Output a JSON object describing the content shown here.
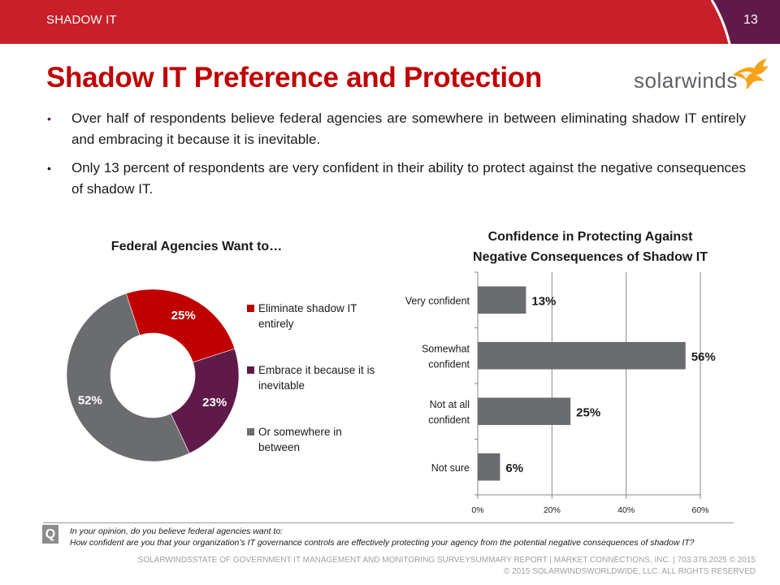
{
  "header": {
    "section_label": "SHADOW IT",
    "page_number": "13",
    "colors": {
      "band": "#c8202a",
      "corner": "#5f1a4a"
    }
  },
  "title": "Shadow IT Preference and Protection",
  "logo": {
    "text": "solarwinds",
    "icon": "solarwinds-flame-icon",
    "accent": "#f7a21b"
  },
  "bullets": [
    "Over half of respondents believe federal agencies are somewhere in between eliminating shadow IT entirely and embracing it because it is inevitable.",
    "Only 13 percent of respondents  are very confident in their ability to protect against the negative consequences of shadow IT."
  ],
  "bullet_glyph": "•",
  "chart_data": [
    {
      "type": "pie",
      "variant": "donut",
      "title": "Federal Agencies Want to…",
      "categories": [
        "Eliminate shadow IT entirely",
        "Embrace it because it is inevitable",
        "Or somewhere in between"
      ],
      "values": [
        25,
        23,
        52
      ],
      "data_labels": [
        "25%",
        "23%",
        "52%"
      ],
      "colors": [
        "#c00000",
        "#5f1a4a",
        "#6b6c70"
      ],
      "legend": "right",
      "start_angle_deg": -18
    },
    {
      "type": "bar",
      "orientation": "horizontal",
      "title": "Confidence in Protecting Against Negative Consequences of Shadow IT",
      "title_lines": [
        "Confidence in Protecting Against",
        "Negative Consequences of Shadow IT"
      ],
      "categories": [
        "Very confident",
        "Somewhat confident",
        "Not at all confident",
        "Not sure"
      ],
      "category_lines": [
        [
          "Very confident"
        ],
        [
          "Somewhat",
          "confident"
        ],
        [
          "Not at all",
          "confident"
        ],
        [
          "Not sure"
        ]
      ],
      "values": [
        13,
        56,
        25,
        6
      ],
      "data_labels": [
        "13%",
        "56%",
        "25%",
        "6%"
      ],
      "xlim": [
        0,
        60
      ],
      "xticks": [
        0,
        20,
        40,
        60
      ],
      "xtick_labels": [
        "0%",
        "20%",
        "40%",
        "60%"
      ],
      "grid": true,
      "color": "#6b6c70",
      "xlabel": "",
      "ylabel": ""
    }
  ],
  "question": {
    "icon_label": "Q",
    "lines": [
      "In your opinion, do you believe federal agencies want to:",
      "How confident are you that your organization’s IT governance  controls are effectively protecting your agency from the potential negative consequences of shadow IT?"
    ]
  },
  "footer": {
    "line1": "SOLARWINDSSTATE OF GOVERNMENT IT MANAGEMENT AND MONITORING SURVEYSUMMARY REPORT |   MARKET CONNECTIONS, INC.  |  703.378.2025 © 2015",
    "line2": "© 2015 SOLARWINDSWORLDWIDE, LLC. ALL RIGHTS RESERVED"
  }
}
